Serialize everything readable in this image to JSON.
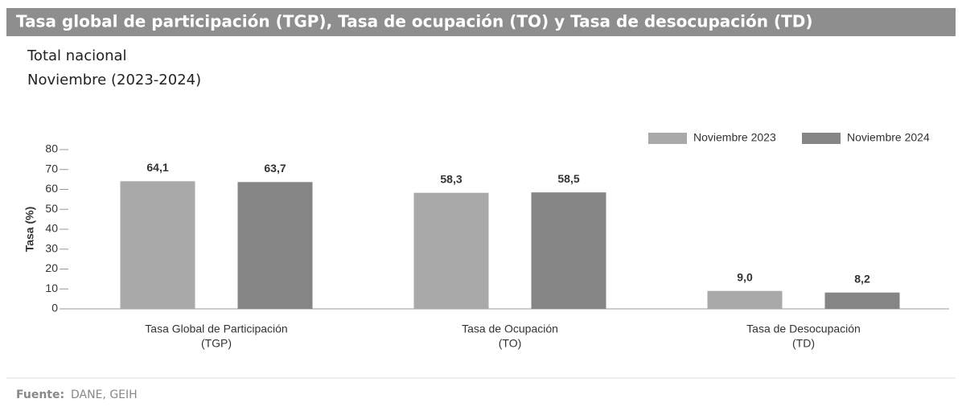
{
  "chart_data": {
    "type": "bar",
    "title": "Tasa global de participación (TGP), Tasa de ocupación (TO) y Tasa de desocupación (TD)",
    "subtitle": [
      "Total nacional",
      "Noviembre (2023-2024)"
    ],
    "y_label": "Tasa (%)",
    "categories": [
      [
        "Tasa Global de Participación",
        "(TGP)"
      ],
      [
        "Tasa de Ocupación",
        "(TO)"
      ],
      [
        "Tasa de Desocupación",
        "(TD)"
      ]
    ],
    "series": [
      {
        "name": "Noviembre 2023",
        "color": "#a9a9a9",
        "values": [
          64.1,
          58.3,
          9.0
        ],
        "value_labels": [
          "64,1",
          "58,3",
          "9,0"
        ]
      },
      {
        "name": "Noviembre 2024",
        "color": "#858585",
        "values": [
          63.7,
          58.5,
          8.2
        ],
        "value_labels": [
          "63,7",
          "58,5",
          "8,2"
        ]
      }
    ],
    "ylim": [
      0,
      80
    ],
    "yticks": [
      0,
      10,
      20,
      30,
      40,
      50,
      60,
      70,
      80
    ],
    "legend": "top-right",
    "source": {
      "label": "Fuente:",
      "text": "DANE, GEIH"
    }
  }
}
